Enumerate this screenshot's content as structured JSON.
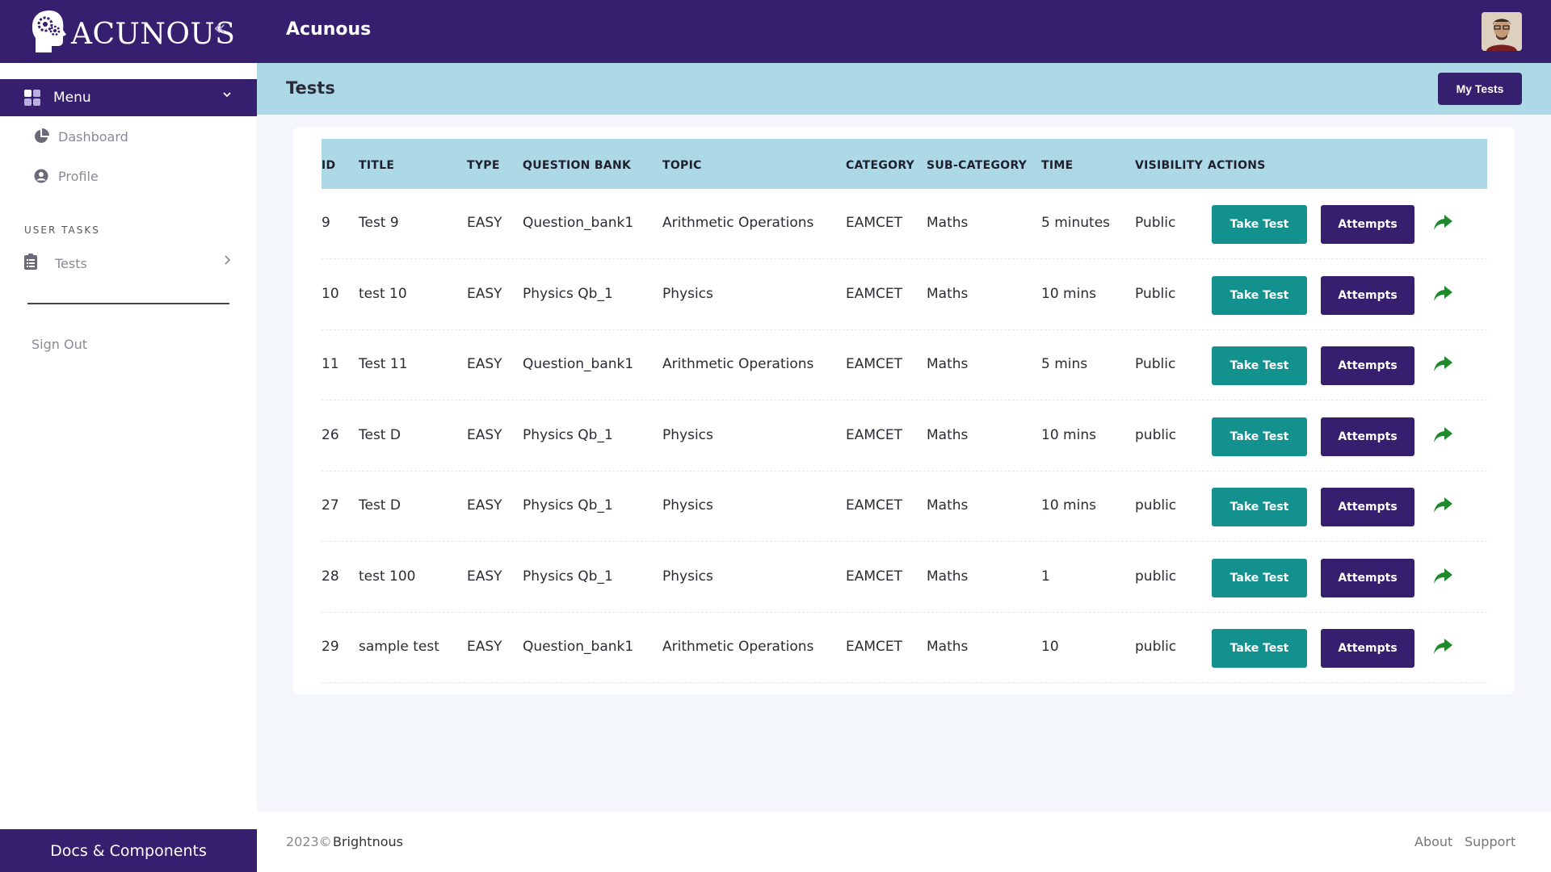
{
  "header": {
    "logo_text": "ACUNOUS",
    "collapse_glyph": "«",
    "app_title": "Acunous"
  },
  "sidebar": {
    "menu_label": "Menu",
    "items": [
      {
        "label": "Dashboard",
        "icon": "pie-chart-icon"
      },
      {
        "label": "Profile",
        "icon": "user-circle-icon"
      }
    ],
    "section_label": "USER TASKS",
    "tasks_label": "Tests",
    "signout_label": "Sign Out",
    "docs_label": "Docs & Components"
  },
  "page": {
    "title": "Tests",
    "my_tests_label": "My Tests"
  },
  "table": {
    "columns": [
      "ID",
      "TITLE",
      "TYPE",
      "QUESTION BANK",
      "TOPIC",
      "CATEGORY",
      "SUB-CATEGORY",
      "TIME",
      "VISIBILITY",
      "ACTIONS"
    ],
    "take_test_label": "Take Test",
    "attempts_label": "Attempts",
    "rows": [
      {
        "id": "9",
        "title": "Test 9",
        "type": "EASY",
        "bank": "Question_bank1",
        "topic": "Arithmetic Operations",
        "category": "EAMCET",
        "subcategory": "Maths",
        "time": "5 minutes",
        "visibility": "Public"
      },
      {
        "id": "10",
        "title": "test 10",
        "type": "EASY",
        "bank": "Physics Qb_1",
        "topic": "Physics",
        "category": "EAMCET",
        "subcategory": "Maths",
        "time": "10 mins",
        "visibility": "Public"
      },
      {
        "id": "11",
        "title": "Test 11",
        "type": "EASY",
        "bank": "Question_bank1",
        "topic": "Arithmetic Operations",
        "category": "EAMCET",
        "subcategory": "Maths",
        "time": "5 mins",
        "visibility": "Public"
      },
      {
        "id": "26",
        "title": "Test D",
        "type": "EASY",
        "bank": "Physics Qb_1",
        "topic": "Physics",
        "category": "EAMCET",
        "subcategory": "Maths",
        "time": "10 mins",
        "visibility": "public"
      },
      {
        "id": "27",
        "title": "Test D",
        "type": "EASY",
        "bank": "Physics Qb_1",
        "topic": "Physics",
        "category": "EAMCET",
        "subcategory": "Maths",
        "time": "10 mins",
        "visibility": "public"
      },
      {
        "id": "28",
        "title": "test 100",
        "type": "EASY",
        "bank": "Physics Qb_1",
        "topic": "Physics",
        "category": "EAMCET",
        "subcategory": "Maths",
        "time": "1",
        "visibility": "public"
      },
      {
        "id": "29",
        "title": "sample test",
        "type": "EASY",
        "bank": "Question_bank1",
        "topic": "Arithmetic Operations",
        "category": "EAMCET",
        "subcategory": "Maths",
        "time": "10",
        "visibility": "public"
      }
    ]
  },
  "footer": {
    "copyright": "2023©",
    "brand": "Brightnous",
    "links": [
      "About",
      "Support"
    ]
  },
  "colors": {
    "primary": "#361f6e",
    "teal": "#12918f",
    "light_blue": "#add8e6",
    "share_green": "#1f8a2c"
  }
}
